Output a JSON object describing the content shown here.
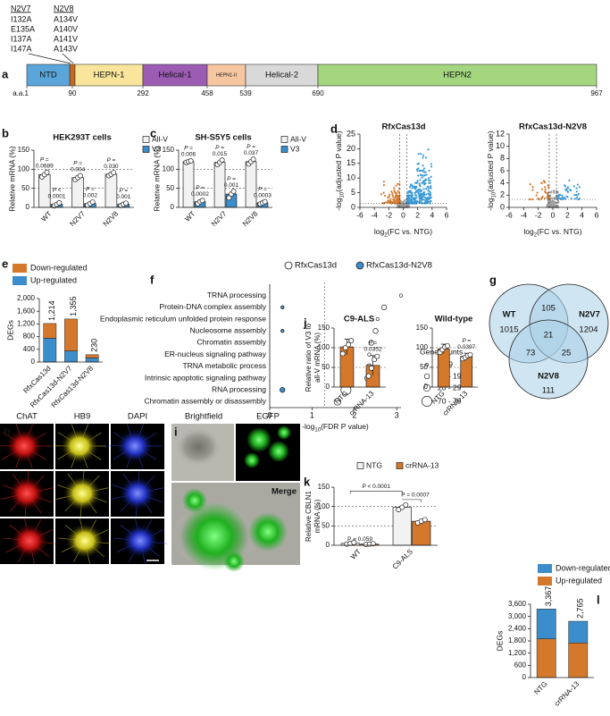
{
  "panel_a": {
    "label": "a",
    "mutants": [
      {
        "name": "N2V7",
        "mutations": [
          "I132A",
          "E135A",
          "I137A",
          "I147A"
        ]
      },
      {
        "name": "N2V8",
        "mutations": [
          "A134V",
          "A140V",
          "A141V",
          "A143V"
        ]
      }
    ],
    "domains": [
      "NTD",
      "HEPN-1",
      "Helical-1",
      "HEPN1-II",
      "Helical-2",
      "HEPN2"
    ],
    "positions_prefix": "a.a.",
    "positions": [
      1,
      90,
      292,
      458,
      539,
      690,
      967
    ]
  },
  "chart_data": [
    {
      "label": "b",
      "type": "bar",
      "title": "HEK293T cells",
      "y_label": "Relative mRNA (%)",
      "categories": [
        "WT",
        "N2V7",
        "N2V8"
      ],
      "series": [
        {
          "name": "All-V",
          "color": "#f2f2f2",
          "values": [
            86,
            78,
            87
          ],
          "points": [
            [
              80,
              86,
              92
            ],
            [
              73,
              78,
              83
            ],
            [
              83,
              87,
              91
            ]
          ],
          "p_labels": [
            [
              "P =",
              "0.0689"
            ],
            [
              "P =",
              "0.004"
            ],
            [
              "P =",
              "0.030"
            ]
          ]
        },
        {
          "name": "V3",
          "color": "#3c8dcb",
          "values": [
            8,
            10,
            8
          ],
          "points": [
            [
              4,
              8,
              12
            ],
            [
              6,
              10,
              14
            ],
            [
              5,
              8,
              11
            ]
          ],
          "p_labels": [
            [
              "P <",
              "0.0001"
            ],
            [
              "P =",
              "0.002"
            ],
            [
              "P =",
              "0.001"
            ]
          ]
        }
      ],
      "ylim": [
        0,
        150
      ],
      "yticks": [
        0,
        50,
        100,
        150
      ],
      "reference_lines": [
        50,
        100
      ],
      "legend": "right"
    },
    {
      "label": "c",
      "type": "bar",
      "title": "SH-S5Y5 cells",
      "y_label": "Relative mRNA (%)",
      "categories": [
        "WT",
        "N2V7",
        "N2V8"
      ],
      "series": [
        {
          "name": "All-V",
          "color": "#f2f2f2",
          "values": [
            120,
            118,
            120
          ],
          "points": [
            [
              118,
              120,
              122
            ],
            [
              112,
              118,
              124
            ],
            [
              114,
              120,
              126
            ]
          ],
          "p_labels": [
            [
              "P =",
              "0.006"
            ],
            [
              "P =",
              "0.015"
            ],
            [
              "P =",
              "0.037"
            ]
          ]
        },
        {
          "name": "V3",
          "color": "#3c8dcb",
          "values": [
            15,
            35,
            12
          ],
          "points": [
            [
              10,
              15,
              18
            ],
            [
              25,
              35,
              42
            ],
            [
              9,
              12,
              15
            ]
          ],
          "p_labels": [
            [
              "P =",
              "0.0002"
            ],
            [
              "P =",
              "0.001"
            ],
            [
              "P =",
              "0.0003"
            ]
          ]
        }
      ],
      "ylim": [
        0,
        150
      ],
      "yticks": [
        0,
        50,
        100,
        150
      ],
      "reference_lines": [
        50,
        100
      ],
      "legend": "right"
    },
    {
      "label": "d",
      "type": "volcano",
      "title": "RfxCas13d",
      "x_label_parts": [
        "log",
        "2",
        "(FC vs. NTG)"
      ],
      "y_label_parts": [
        "-log",
        "10",
        "(adjusted P value)"
      ],
      "xlim": [
        -6,
        6
      ],
      "xticks": [
        -6,
        -4,
        -2,
        0,
        2,
        4,
        6
      ],
      "ylim": [
        0,
        25
      ],
      "yticks": [
        0,
        5,
        10,
        15,
        20,
        25
      ],
      "fc_cutoffs": [
        -0.5,
        0.5
      ],
      "p_cutoff": 1.3,
      "colors": [
        "#d4782b",
        "#3c9bd6",
        "#9a9a9a"
      ]
    },
    {
      "type": "volcano",
      "title": "RfxCas13d-N2V8",
      "x_label_parts": [
        "log",
        "2",
        "(FC vs. NTG)"
      ],
      "y_label_parts": [
        "-log",
        "10",
        "(adjusted P value)"
      ],
      "xlim": [
        -6,
        6
      ],
      "xticks": [
        -6,
        -4,
        -2,
        0,
        2,
        4,
        6
      ],
      "ylim": [
        0,
        12
      ],
      "yticks": [
        0,
        2,
        4,
        6,
        8,
        10,
        12
      ],
      "fc_cutoffs": [
        -0.5,
        0.5
      ],
      "p_cutoff": 1.3,
      "colors": [
        "#d4782b",
        "#3c9bd6",
        "#9a9a9a"
      ]
    },
    {
      "label": "e",
      "type": "stacked_bar",
      "y_label": "DEGs",
      "categories": [
        "RfxCas13d",
        "RfxCas13d-N2V7",
        "RfxCas13d-N2V8"
      ],
      "series": [
        {
          "name": "Down-regulated",
          "color": "#d4782b",
          "values": [
            464,
            1005,
            100
          ]
        },
        {
          "name": "Up-regulated",
          "color": "#3c8dcb",
          "values": [
            750,
            350,
            130
          ]
        }
      ],
      "total_labels": [
        "1,214",
        "1,355",
        "230"
      ],
      "ylim": [
        0,
        2000
      ],
      "yticks": [
        0,
        400,
        800,
        {
          "value": 1200,
          "label": "1,200"
        },
        {
          "value": 1600,
          "label": "1,600"
        },
        {
          "value": 2000,
          "label": "2,000"
        }
      ]
    },
    {
      "label": "f",
      "type": "dot",
      "categories": [
        "TRNA processing",
        "Protein-DNA complex assembly",
        "Endoplasmic reticulum unfolded protein response",
        "Nucleosome assembly",
        "Chromatin assembly",
        "ER-nucleus signaling pathway",
        "TRNA metabolic process",
        "Intrinsic apoptotic signaling pathway",
        "RNA processing",
        "Chromatin assembly or disassembly"
      ],
      "series": [
        {
          "name": "RfxCas13d",
          "color": "#ffffff",
          "values": [
            3.1,
            2.7,
            2.55,
            2.5,
            2.4,
            2.35,
            2.35,
            2.3,
            1.8,
            1.6
          ],
          "gene_counts": [
            "1 - 9",
            "10 - 19",
            "1 - 9",
            "10 - 19",
            "10 - 19",
            "1 - 9",
            "10 - 19",
            "10 - 19",
            "70 - 79",
            "20 - 29"
          ]
        },
        {
          "name": "RfxCas13d-N2V8",
          "color": "#3c8dcb",
          "values": [
            null,
            0.3,
            null,
            0.3,
            null,
            null,
            null,
            null,
            0.3,
            null
          ],
          "gene_counts": [
            null,
            "1 - 9",
            null,
            "1 - 9",
            null,
            null,
            null,
            null,
            "10 - 19",
            null
          ]
        }
      ],
      "x_label_parts": [
        "-log",
        "10",
        "(FDR P value)"
      ],
      "xlim": [
        0,
        3.1
      ],
      "xticks": [
        0,
        1,
        2,
        3
      ],
      "threshold": 1.3,
      "size_legend": {
        "title": "Gene counts",
        "labels": [
          "1 - 9",
          "10 - 19",
          "20 - 29",
          "70 - 79"
        ]
      }
    },
    {
      "label": "j",
      "type": "bar",
      "title": "C9-ALS",
      "y_label_lines": [
        "Relative ratio of V3 to",
        "all-V mRNA (%)"
      ],
      "categories": [
        "NTG",
        "crRNA-13"
      ],
      "series": [
        {
          "color": "#d4782b",
          "values": [
            102,
            55
          ],
          "errors": [
            20,
            25
          ],
          "points": [
            [
              85,
              100,
              108,
              118
            ],
            [
              28,
              48,
              70,
              78
            ]
          ],
          "p_labels": [
            null,
            [
              "P =",
              "0.0352"
            ]
          ]
        }
      ],
      "ylim": [
        0,
        150
      ],
      "yticks": [
        0,
        50,
        100,
        150
      ],
      "reference_lines": [
        50,
        100
      ]
    },
    {
      "type": "bar",
      "title": "Wild-type",
      "categories": [
        "NTG",
        "crRNA-13"
      ],
      "series": [
        {
          "color": "#d4782b",
          "values": [
            97,
            78
          ],
          "errors": [
            12,
            8
          ],
          "points": [
            [
              88,
              95,
              102,
              105
            ],
            [
              72,
              75,
              80,
              82
            ]
          ],
          "p_labels": [
            null,
            [
              "P =",
              "0.0397"
            ]
          ]
        }
      ],
      "ylim": [
        0,
        150
      ],
      "yticks": [
        0,
        50,
        100,
        150
      ],
      "reference_lines": [
        50,
        100
      ]
    },
    {
      "label": "k",
      "type": "bar",
      "y_label_lines": [
        "Relative CBLN1",
        "mRNA (%)"
      ],
      "categories": [
        "WT",
        "C9-ALS"
      ],
      "series": [
        {
          "name": "NTG",
          "color": "#f2f2f2",
          "values": [
            5,
            98
          ],
          "points": [
            [
              3,
              5,
              7
            ],
            [
              92,
              98,
              104
            ]
          ]
        },
        {
          "name": "crRNA-13",
          "color": "#d4782b",
          "values": [
            3,
            62
          ],
          "points": [
            [
              2,
              3,
              4
            ],
            [
              58,
              62,
              66
            ]
          ]
        }
      ],
      "annotations": [
        {
          "text": "P = 0.059"
        },
        {
          "text": "P < 0.0001"
        },
        {
          "text": "P = 0.0007"
        }
      ],
      "ylim": [
        0,
        150
      ],
      "yticks": [
        0,
        50,
        100,
        150
      ],
      "reference_lines": [
        50,
        100
      ],
      "legend": "top"
    },
    {
      "label": "l",
      "type": "stacked_bar",
      "y_label": "DEGs",
      "categories": [
        "NTG",
        "crRNA-13"
      ],
      "series": [
        {
          "name": "Down-regulated",
          "color": "#3c8dcb",
          "values": [
            1467,
            1065
          ]
        },
        {
          "name": "Up-regulated",
          "color": "#d4782b",
          "values": [
            1900,
            1700
          ]
        }
      ],
      "total_labels": [
        "3,367",
        "2,765"
      ],
      "ylim": [
        0,
        3600
      ],
      "yticks": [
        0,
        600,
        {
          "value": 1200,
          "label": "1,200"
        },
        {
          "value": 1800,
          "label": "1,800"
        },
        {
          "value": 2400,
          "label": "2,400"
        },
        {
          "value": 3000,
          "label": "3,000"
        },
        {
          "value": 3600,
          "label": "3,600"
        }
      ]
    }
  ],
  "panel_g": {
    "label": "g",
    "sets": [
      "WT",
      "N2V7",
      "N2V8"
    ],
    "counts": {
      "wt_only": 1015,
      "n2v7_only": 1204,
      "n2v8_only": 111,
      "wt_n2v7": 105,
      "wt_n2v8": 73,
      "n2v7_n2v8": 25,
      "all": 21
    }
  },
  "panel_h": {
    "label": "h",
    "channels": [
      "ChAT",
      "HB9",
      "DAPI"
    ]
  },
  "panel_i": {
    "label": "i",
    "images": [
      "Brightfield",
      "EGFP",
      "Merge"
    ]
  }
}
